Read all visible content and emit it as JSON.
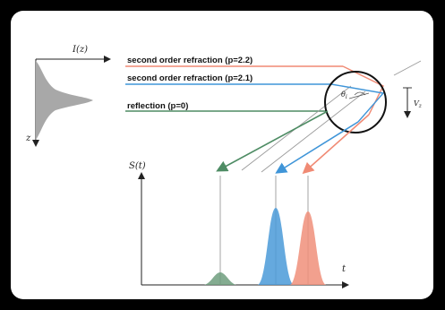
{
  "colors": {
    "red": "#f08a74",
    "blue": "#3f95d8",
    "green": "#4e8c64",
    "gray_fill": "#a8a8a8",
    "line_gray": "#9a9a9a"
  },
  "labels": {
    "ray_p22": "second order refraction (p=2.2)",
    "ray_p21": "second order refraction (p=2.1)",
    "ray_p0": "reflection (p=0)",
    "intensity_axis": "I(z)",
    "z_axis": "z",
    "signal_axis": "S(t)",
    "time_axis": "t",
    "velocity": "V",
    "velocity_sub": "z",
    "angle": "θ",
    "angle_sub": "i"
  },
  "icons": [
    "arrow-head-icon",
    "droplet-circle-icon"
  ]
}
